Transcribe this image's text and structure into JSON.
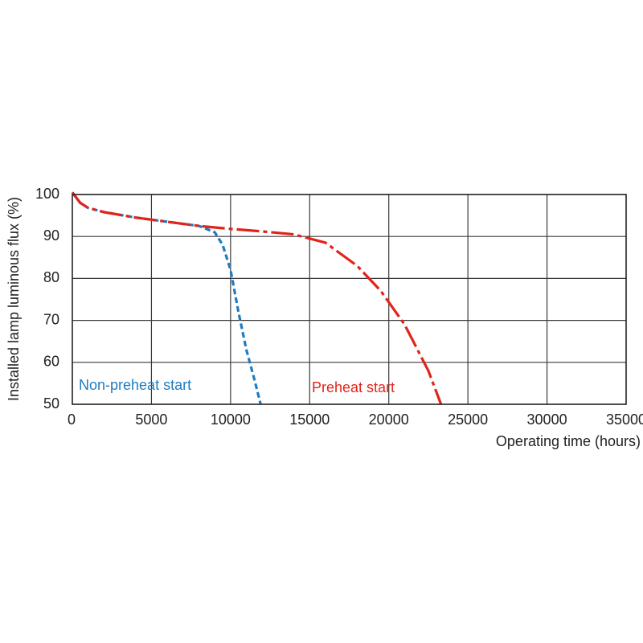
{
  "chart_data": {
    "type": "line",
    "xlabel": "Operating time (hours)",
    "ylabel": "Installed lamp luminous flux (%)",
    "xlim": [
      0,
      35000
    ],
    "xticks": [
      0,
      5000,
      10000,
      15000,
      20000,
      25000,
      30000,
      35000
    ],
    "ylim": [
      50,
      100
    ],
    "yticks": [
      50,
      60,
      70,
      80,
      90,
      100
    ],
    "grid": true,
    "series": [
      {
        "name": "Non-preheat start",
        "color": "#1f7cc1",
        "dash": "dashed",
        "x": [
          0,
          500,
          1000,
          2000,
          4000,
          6000,
          8000,
          9000,
          9500,
          10000,
          10500,
          11000,
          11500,
          11900
        ],
        "values": [
          100.5,
          98,
          96.8,
          95.8,
          94.5,
          93.5,
          92.5,
          91,
          88,
          82,
          72,
          63,
          56,
          50
        ]
      },
      {
        "name": "Preheat start",
        "color": "#e2231a",
        "dash": "dashdot",
        "x": [
          0,
          500,
          1000,
          2000,
          4000,
          6000,
          8000,
          10000,
          12000,
          14000,
          16000,
          18000,
          19500,
          21000,
          22500,
          23300
        ],
        "values": [
          100.5,
          98,
          96.8,
          95.8,
          94.5,
          93.5,
          92.5,
          91.8,
          91.2,
          90.5,
          88.5,
          83,
          77,
          69,
          58,
          50
        ]
      }
    ]
  }
}
